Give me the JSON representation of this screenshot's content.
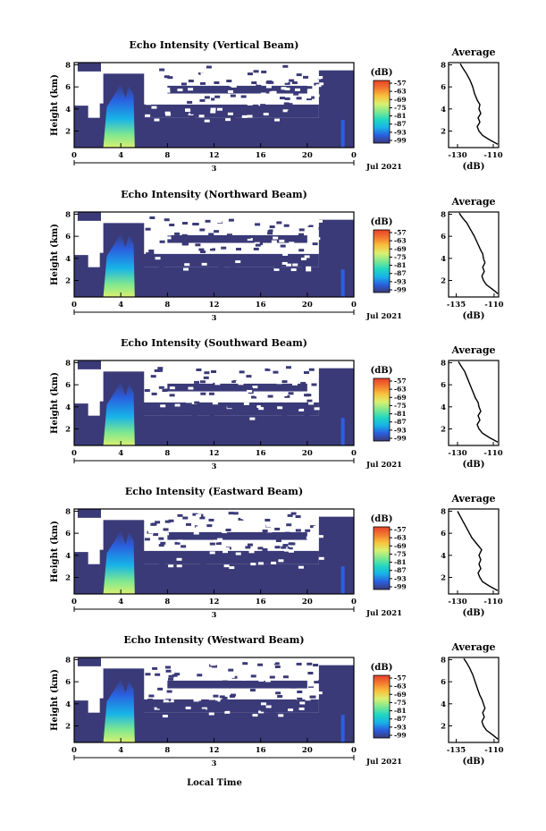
{
  "figure": {
    "xlabel": "Local Time",
    "date_label": "Jul 2021",
    "height_label": "Height (km)",
    "average_title": "Average",
    "units_label": "(dB)",
    "colorbar_title": "(dB)",
    "colorbar_ticks": [
      "-57",
      "-63",
      "-69",
      "-75",
      "-81",
      "-87",
      "-93",
      "-99"
    ],
    "colors": {
      "fill": "#3a3a78",
      "colormap": [
        "#3a3a78",
        "#2a5fe0",
        "#17b3e8",
        "#21d8c0",
        "#7fe890",
        "#d9f070",
        "#f9c23c",
        "#f37a2e",
        "#e8412b"
      ]
    }
  },
  "chart_data": [
    {
      "type": "heatmap",
      "title": "Echo Intensity (Vertical Beam)",
      "x_ticks": [
        "0",
        "4",
        "8",
        "12",
        "16",
        "20",
        "0"
      ],
      "day_tick": "3",
      "y_ticks": [
        "2",
        "4",
        "6",
        "8"
      ],
      "xlim": [
        0,
        24
      ],
      "ylim": [
        0.5,
        8.2
      ],
      "colorbar_range": [
        -99,
        -57
      ],
      "profile": {
        "title": "Average",
        "x_ticks": [
          "-130",
          "-110"
        ],
        "xlim": [
          -135,
          -107
        ],
        "y_ticks": [
          "2",
          "4",
          "6",
          "8"
        ],
        "ylim": [
          0.5,
          8.2
        ],
        "points": [
          [
            -107.5,
            0.8
          ],
          [
            -112,
            1.2
          ],
          [
            -116,
            1.6
          ],
          [
            -118,
            2.0
          ],
          [
            -119,
            2.4
          ],
          [
            -117.5,
            2.8
          ],
          [
            -118.5,
            3.2
          ],
          [
            -117,
            3.6
          ],
          [
            -118,
            4.0
          ],
          [
            -117.5,
            4.4
          ],
          [
            -119,
            4.8
          ],
          [
            -120.5,
            5.4
          ],
          [
            -121.5,
            6.0
          ],
          [
            -123,
            6.6
          ],
          [
            -125,
            7.2
          ],
          [
            -127,
            7.7
          ],
          [
            -128.5,
            8.1
          ]
        ]
      }
    },
    {
      "type": "heatmap",
      "title": "Echo Intensity (Northward Beam)",
      "x_ticks": [
        "0",
        "4",
        "8",
        "12",
        "16",
        "20",
        "0"
      ],
      "day_tick": "3",
      "y_ticks": [
        "2",
        "4",
        "6",
        "8"
      ],
      "xlim": [
        0,
        24
      ],
      "ylim": [
        0.5,
        8.2
      ],
      "colorbar_range": [
        -99,
        -57
      ],
      "profile": {
        "title": "Average",
        "x_ticks": [
          "-135",
          "-110"
        ],
        "xlim": [
          -140,
          -107
        ],
        "y_ticks": [
          "2",
          "4",
          "6",
          "8"
        ],
        "ylim": [
          0.5,
          8.2
        ],
        "points": [
          [
            -107.5,
            0.8
          ],
          [
            -111,
            1.2
          ],
          [
            -115,
            1.6
          ],
          [
            -117,
            2.0
          ],
          [
            -118,
            2.4
          ],
          [
            -116.5,
            2.8
          ],
          [
            -117.5,
            3.2
          ],
          [
            -116,
            3.6
          ],
          [
            -117,
            4.0
          ],
          [
            -117.5,
            4.4
          ],
          [
            -119,
            4.8
          ],
          [
            -121,
            5.4
          ],
          [
            -123,
            6.0
          ],
          [
            -125.5,
            6.6
          ],
          [
            -128,
            7.2
          ],
          [
            -131,
            7.7
          ],
          [
            -133,
            8.1
          ]
        ]
      }
    },
    {
      "type": "heatmap",
      "title": "Echo Intensity (Southward Beam)",
      "x_ticks": [
        "0",
        "4",
        "8",
        "12",
        "16",
        "20",
        "0"
      ],
      "day_tick": "3",
      "y_ticks": [
        "2",
        "4",
        "6",
        "8"
      ],
      "xlim": [
        0,
        24
      ],
      "ylim": [
        0.5,
        8.2
      ],
      "colorbar_range": [
        -99,
        -57
      ],
      "profile": {
        "title": "Average",
        "x_ticks": [
          "-130",
          "-110"
        ],
        "xlim": [
          -135,
          -107
        ],
        "y_ticks": [
          "2",
          "4",
          "6",
          "8"
        ],
        "ylim": [
          0.5,
          8.2
        ],
        "points": [
          [
            -107.5,
            0.8
          ],
          [
            -112,
            1.2
          ],
          [
            -116,
            1.6
          ],
          [
            -118,
            2.0
          ],
          [
            -119,
            2.4
          ],
          [
            -117.5,
            2.8
          ],
          [
            -118.5,
            3.2
          ],
          [
            -117,
            3.6
          ],
          [
            -118,
            4.0
          ],
          [
            -118.5,
            4.4
          ],
          [
            -120,
            4.8
          ],
          [
            -121.5,
            5.4
          ],
          [
            -123,
            6.0
          ],
          [
            -124.5,
            6.6
          ],
          [
            -126,
            7.2
          ],
          [
            -128,
            7.7
          ],
          [
            -129.5,
            8.1
          ]
        ]
      }
    },
    {
      "type": "heatmap",
      "title": "Echo Intensity (Eastward Beam)",
      "x_ticks": [
        "0",
        "4",
        "8",
        "12",
        "16",
        "20",
        "0"
      ],
      "day_tick": "3",
      "y_ticks": [
        "2",
        "4",
        "6",
        "8"
      ],
      "xlim": [
        0,
        24
      ],
      "ylim": [
        0.5,
        8.2
      ],
      "colorbar_range": [
        -99,
        -57
      ],
      "profile": {
        "title": "Average",
        "x_ticks": [
          "-130",
          "-110"
        ],
        "xlim": [
          -135,
          -107
        ],
        "y_ticks": [
          "2",
          "4",
          "6",
          "8"
        ],
        "ylim": [
          0.5,
          8.2
        ],
        "points": [
          [
            -107.5,
            0.8
          ],
          [
            -112,
            1.2
          ],
          [
            -116,
            1.6
          ],
          [
            -117.5,
            2.0
          ],
          [
            -118.5,
            2.4
          ],
          [
            -117,
            2.8
          ],
          [
            -118,
            3.2
          ],
          [
            -117,
            3.6
          ],
          [
            -118,
            4.0
          ],
          [
            -116.5,
            4.5
          ],
          [
            -119,
            5.0
          ],
          [
            -122,
            5.6
          ],
          [
            -124,
            6.2
          ],
          [
            -126,
            6.8
          ],
          [
            -128,
            7.4
          ],
          [
            -130,
            8.0
          ]
        ]
      }
    },
    {
      "type": "heatmap",
      "title": "Echo Intensity (Westward Beam)",
      "x_ticks": [
        "0",
        "4",
        "8",
        "12",
        "16",
        "20",
        "0"
      ],
      "day_tick": "3",
      "y_ticks": [
        "2",
        "4",
        "6",
        "8"
      ],
      "xlim": [
        0,
        24
      ],
      "ylim": [
        0.5,
        8.2
      ],
      "colorbar_range": [
        -99,
        -57
      ],
      "profile": {
        "title": "Average",
        "x_ticks": [
          "-135",
          "-110"
        ],
        "xlim": [
          -140,
          -107
        ],
        "y_ticks": [
          "2",
          "4",
          "6",
          "8"
        ],
        "ylim": [
          0.5,
          8.2
        ],
        "points": [
          [
            -107.5,
            0.8
          ],
          [
            -111,
            1.2
          ],
          [
            -115,
            1.6
          ],
          [
            -117,
            2.0
          ],
          [
            -118,
            2.4
          ],
          [
            -116.5,
            2.8
          ],
          [
            -117.5,
            3.2
          ],
          [
            -116,
            3.6
          ],
          [
            -117,
            4.0
          ],
          [
            -118,
            4.4
          ],
          [
            -119.5,
            4.8
          ],
          [
            -121,
            5.4
          ],
          [
            -122.5,
            6.0
          ],
          [
            -124,
            6.6
          ],
          [
            -126,
            7.2
          ],
          [
            -128,
            7.7
          ],
          [
            -130,
            8.1
          ]
        ]
      }
    }
  ]
}
